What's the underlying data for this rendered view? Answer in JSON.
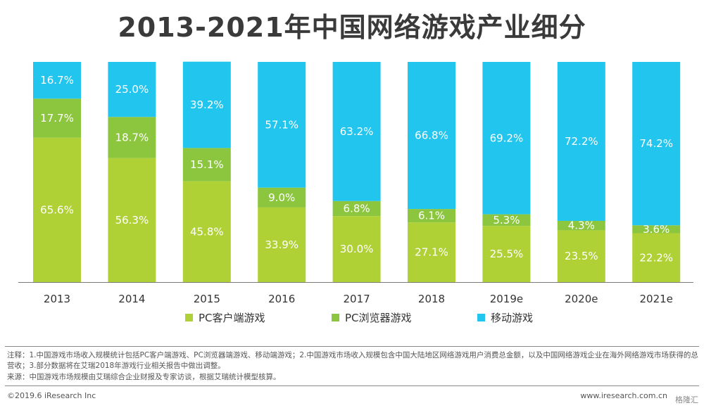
{
  "title": "2013-2021年中国网络游戏产业细分",
  "colors": {
    "pc_client": "#b0d136",
    "pc_browser": "#8cc63e",
    "mobile": "#21c5ee"
  },
  "chart_data": {
    "type": "bar",
    "stacked": true,
    "title": "2013-2021年中国网络游戏产业细分",
    "categories": [
      "2013",
      "2014",
      "2015",
      "2016",
      "2017",
      "2018",
      "2019e",
      "2020e",
      "2021e"
    ],
    "series": [
      {
        "name": "PC客户端游戏",
        "color": "#b0d136",
        "values": [
          65.6,
          56.3,
          45.8,
          33.9,
          30.0,
          27.1,
          25.5,
          23.5,
          22.2
        ]
      },
      {
        "name": "PC浏览器游戏",
        "color": "#8cc63e",
        "values": [
          17.7,
          18.7,
          15.1,
          9.0,
          6.8,
          6.1,
          5.3,
          4.3,
          3.6
        ]
      },
      {
        "name": "移动游戏",
        "color": "#21c5ee",
        "values": [
          16.7,
          25.0,
          39.2,
          57.1,
          63.2,
          66.8,
          69.2,
          72.2,
          74.2
        ]
      }
    ],
    "unit": "%",
    "ylim": [
      0,
      100
    ],
    "xlabel": "",
    "ylabel": ""
  },
  "legend": [
    "PC客户端游戏",
    "PC浏览器游戏",
    "移动游戏"
  ],
  "notes": {
    "note": "注释：1.中国游戏市场收入规模统计包括PC客户端游戏、PC浏览器端游戏、移动端游戏；2.中国游戏市场收入规模包含中国大陆地区网络游戏用户消费总金额，以及中国网络游戏企业在海外网络游戏市场获得的总营收；3.部分数据将在艾瑞2018年游戏行业相关报告中做出调整。",
    "source": "来源：中国游戏市场规模由艾瑞综合企业财报及专家访谈，根据艾瑞统计模型核算。"
  },
  "footer": {
    "copyright": "©2019.6 iResearch Inc",
    "website": "www.iresearch.com.cn",
    "watermark": "格隆汇"
  }
}
